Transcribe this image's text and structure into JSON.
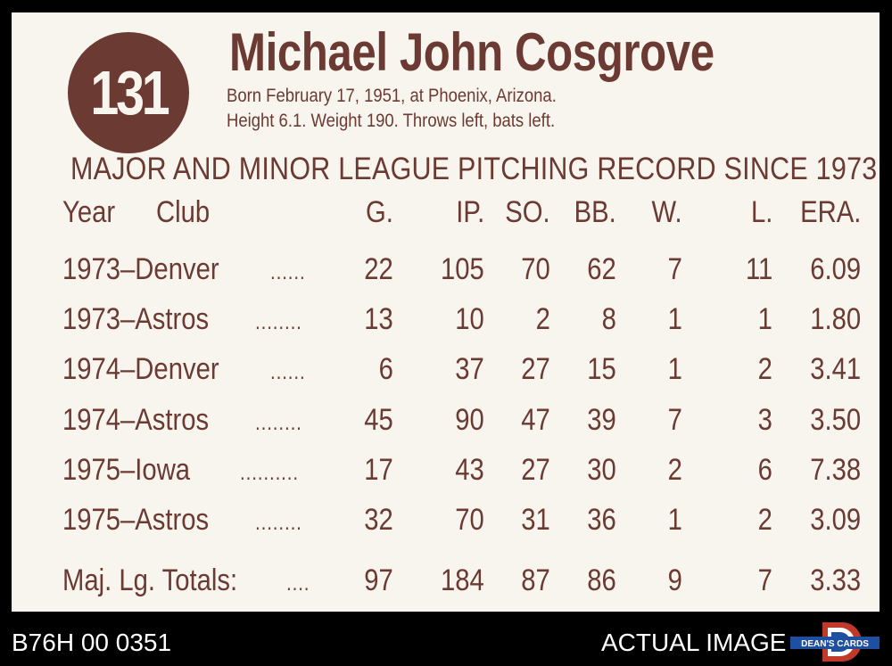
{
  "card": {
    "number": "131",
    "name": "Michael John Cosgrove",
    "bio_line1": "Born February 17, 1951, at Phoenix, Arizona.",
    "bio_line2": "Height 6.1. Weight 190. Throws left, bats left.",
    "heading": "MAJOR AND MINOR LEAGUE PITCHING RECORD SINCE 1973",
    "columns": [
      "Year",
      "Club",
      "G.",
      "IP.",
      "SO.",
      "BB.",
      "W.",
      "L.",
      "ERA."
    ],
    "rows": [
      {
        "team": "1973–Denver",
        "dots": "......",
        "g": "22",
        "ip": "105",
        "so": "70",
        "bb": "62",
        "w": "7",
        "l": "11",
        "era": "6.09"
      },
      {
        "team": "1973–Astros",
        "dots": "........",
        "g": "13",
        "ip": "10",
        "so": "2",
        "bb": "8",
        "w": "1",
        "l": "1",
        "era": "1.80"
      },
      {
        "team": "1974–Denver",
        "dots": "......",
        "g": "6",
        "ip": "37",
        "so": "27",
        "bb": "15",
        "w": "1",
        "l": "2",
        "era": "3.41"
      },
      {
        "team": "1974–Astros",
        "dots": "........",
        "g": "45",
        "ip": "90",
        "so": "47",
        "bb": "39",
        "w": "7",
        "l": "3",
        "era": "3.50"
      },
      {
        "team": "1975–Iowa",
        "dots": "..........",
        "g": "17",
        "ip": "43",
        "so": "27",
        "bb": "30",
        "w": "2",
        "l": "6",
        "era": "7.38"
      },
      {
        "team": "1975–Astros",
        "dots": "........",
        "g": "32",
        "ip": "70",
        "so": "31",
        "bb": "36",
        "w": "1",
        "l": "2",
        "era": "3.09"
      }
    ],
    "totals": {
      "label": "Maj. Lg. Totals:",
      "dots": "....",
      "g": "97",
      "ip": "184",
      "so": "87",
      "bb": "86",
      "w": "9",
      "l": "7",
      "era": "3.33"
    },
    "ink_color": "#6a3a33",
    "paper_color": "#f8f5ef"
  },
  "footer": {
    "inventory_id": "B76H 00 0351",
    "actual_image": "ACTUAL IMAGE",
    "logo_text": "DEAN'S CARDS",
    "logo_icon": "deans-cards-logo"
  }
}
